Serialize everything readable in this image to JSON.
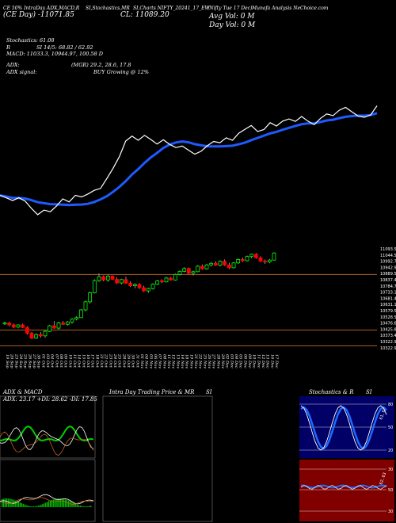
{
  "header": {
    "line1_a": "CE 50% IntraDay ADX,MACD,R",
    "line1_b": "SI,Stochastics,MR",
    "line1_c": "SI,Charts NIFTY_20241_17_EW",
    "line1_d": "(Nifty Tue 17 Dec)",
    "line1_e": "Munafa Analysis NeChoice.com",
    "price_left": "(CE Day) -11071.85",
    "price_mid": "CL: 11089.20",
    "vol_line1": "Avg Vol: 0  M",
    "vol_line2": "Day Vol: 0   M"
  },
  "indicators": {
    "stochastics": "Stochastics: 61.08",
    "rsi": "SI 14/5: 68.82 / 62.92",
    "rsi_prefix": "R",
    "macd": "MACD: 11033.3, 10944.97, 100.58 D",
    "adx": "(MGR) 29.2, 28.6, 17.8",
    "adx_label": "ADX:",
    "adx_signal_label": "ADX signal:",
    "adx_signal": "BUY Growing @ 12%"
  },
  "panels": {
    "adx_title": "ADX & MACD",
    "adx_values": "ADX: 23.17 +DI: 28.62 -DI: 17.85",
    "intraday_title": "Intra Day Trading Price & MR",
    "intraday_title_suffix": "SI",
    "stoch_title": "Stochastics & R",
    "stoch_title_suffix": "SI",
    "stoch_labels": [
      "80",
      "50",
      "20"
    ],
    "stoch_side_label": "61, 62",
    "rsi_labels": [
      "30",
      "50",
      "30"
    ],
    "rsi_side_label": "62, 63"
  },
  "chart_data": {
    "type": "candlestick",
    "dates": [
      "19 Sep",
      "20 Sep",
      "23 Sep",
      "24 Sep",
      "25 Sep",
      "26 Sep",
      "27 Sep",
      "30 Sep",
      "01 Oct",
      "03 Oct",
      "04 Oct",
      "07 Oct",
      "08 Oct",
      "09 Oct",
      "10 Oct",
      "11 Oct",
      "14 Oct",
      "15 Oct",
      "16 Oct",
      "17 Oct",
      "18 Oct",
      "21 Oct",
      "22 Oct",
      "23 Oct",
      "24 Oct",
      "25 Oct",
      "28 Oct",
      "29 Oct",
      "30 Oct",
      "31 Oct",
      "01 Nov",
      "04 Nov",
      "05 Nov",
      "06 Nov",
      "07 Nov",
      "08 Nov",
      "11 Nov",
      "12 Nov",
      "13 Nov",
      "14 Nov",
      "18 Nov",
      "19 Nov",
      "21 Nov",
      "22 Nov",
      "25 Nov",
      "26 Nov",
      "27 Nov",
      "28 Nov",
      "29 Nov",
      "02 Dec",
      "03 Dec",
      "04 Dec",
      "05 Dec",
      "06 Dec",
      "09 Dec",
      "10 Dec",
      "11 Dec",
      "12 Dec",
      "13 Dec",
      "16 Dec",
      "17 Dec"
    ],
    "price_axis_labels": [
      "11093.5",
      "11044.59",
      "10992.77",
      "10942.91",
      "10889.55",
      "10837.41",
      "10784.74",
      "10733.14",
      "10681.43",
      "10631.14",
      "10579.5",
      "10528.51",
      "10476.67",
      "10425.87",
      "10373.48",
      "10322.93",
      "10322.93"
    ],
    "candles": [
      {
        "o": 10505,
        "h": 10520,
        "l": 10495,
        "c": 10510,
        "up": true
      },
      {
        "o": 10510,
        "h": 10518,
        "l": 10485,
        "c": 10495,
        "up": false
      },
      {
        "o": 10495,
        "h": 10505,
        "l": 10470,
        "c": 10478,
        "up": false
      },
      {
        "o": 10478,
        "h": 10500,
        "l": 10468,
        "c": 10495,
        "up": true
      },
      {
        "o": 10495,
        "h": 10505,
        "l": 10470,
        "c": 10475,
        "up": false
      },
      {
        "o": 10475,
        "h": 10485,
        "l": 10420,
        "c": 10430,
        "up": false
      },
      {
        "o": 10430,
        "h": 10440,
        "l": 10385,
        "c": 10392,
        "up": false
      },
      {
        "o": 10392,
        "h": 10430,
        "l": 10385,
        "c": 10420,
        "up": true
      },
      {
        "o": 10420,
        "h": 10440,
        "l": 10395,
        "c": 10410,
        "up": false
      },
      {
        "o": 10410,
        "h": 10455,
        "l": 10395,
        "c": 10445,
        "up": true
      },
      {
        "o": 10445,
        "h": 10495,
        "l": 10440,
        "c": 10488,
        "up": true
      },
      {
        "o": 10488,
        "h": 10525,
        "l": 10465,
        "c": 10470,
        "up": false
      },
      {
        "o": 10470,
        "h": 10520,
        "l": 10460,
        "c": 10510,
        "up": true
      },
      {
        "o": 10510,
        "h": 10525,
        "l": 10495,
        "c": 10500,
        "up": false
      },
      {
        "o": 10500,
        "h": 10525,
        "l": 10490,
        "c": 10518,
        "up": true
      },
      {
        "o": 10518,
        "h": 10548,
        "l": 10505,
        "c": 10540,
        "up": true
      },
      {
        "o": 10540,
        "h": 10562,
        "l": 10530,
        "c": 10552,
        "up": true
      },
      {
        "o": 10552,
        "h": 10620,
        "l": 10548,
        "c": 10612,
        "up": true
      },
      {
        "o": 10612,
        "h": 10685,
        "l": 10600,
        "c": 10675,
        "up": true
      },
      {
        "o": 10675,
        "h": 10755,
        "l": 10660,
        "c": 10745,
        "up": true
      },
      {
        "o": 10745,
        "h": 10850,
        "l": 10740,
        "c": 10840,
        "up": true
      },
      {
        "o": 10840,
        "h": 10895,
        "l": 10830,
        "c": 10870,
        "up": true
      },
      {
        "o": 10870,
        "h": 10880,
        "l": 10835,
        "c": 10845,
        "up": false
      },
      {
        "o": 10845,
        "h": 10885,
        "l": 10830,
        "c": 10875,
        "up": true
      },
      {
        "o": 10875,
        "h": 10880,
        "l": 10845,
        "c": 10850,
        "up": false
      },
      {
        "o": 10850,
        "h": 10865,
        "l": 10815,
        "c": 10822,
        "up": false
      },
      {
        "o": 10822,
        "h": 10855,
        "l": 10810,
        "c": 10848,
        "up": true
      },
      {
        "o": 10848,
        "h": 10870,
        "l": 10815,
        "c": 10820,
        "up": false
      },
      {
        "o": 10820,
        "h": 10835,
        "l": 10790,
        "c": 10800,
        "up": false
      },
      {
        "o": 10800,
        "h": 10820,
        "l": 10780,
        "c": 10810,
        "up": true
      },
      {
        "o": 10810,
        "h": 10820,
        "l": 10775,
        "c": 10785,
        "up": false
      },
      {
        "o": 10785,
        "h": 10800,
        "l": 10752,
        "c": 10760,
        "up": false
      },
      {
        "o": 10760,
        "h": 10785,
        "l": 10745,
        "c": 10778,
        "up": true
      },
      {
        "o": 10778,
        "h": 10820,
        "l": 10770,
        "c": 10812,
        "up": true
      },
      {
        "o": 10812,
        "h": 10845,
        "l": 10805,
        "c": 10838,
        "up": true
      },
      {
        "o": 10838,
        "h": 10850,
        "l": 10820,
        "c": 10830,
        "up": false
      },
      {
        "o": 10830,
        "h": 10870,
        "l": 10825,
        "c": 10860,
        "up": true
      },
      {
        "o": 10860,
        "h": 10868,
        "l": 10840,
        "c": 10845,
        "up": false
      },
      {
        "o": 10845,
        "h": 10895,
        "l": 10840,
        "c": 10888,
        "up": true
      },
      {
        "o": 10888,
        "h": 10920,
        "l": 10880,
        "c": 10912,
        "up": true
      },
      {
        "o": 10912,
        "h": 10945,
        "l": 10905,
        "c": 10935,
        "up": true
      },
      {
        "o": 10935,
        "h": 10942,
        "l": 10890,
        "c": 10898,
        "up": false
      },
      {
        "o": 10898,
        "h": 10918,
        "l": 10880,
        "c": 10910,
        "up": true
      },
      {
        "o": 10910,
        "h": 10960,
        "l": 10905,
        "c": 10952,
        "up": true
      },
      {
        "o": 10952,
        "h": 10965,
        "l": 10925,
        "c": 10932,
        "up": false
      },
      {
        "o": 10932,
        "h": 10972,
        "l": 10925,
        "c": 10962,
        "up": true
      },
      {
        "o": 10962,
        "h": 10985,
        "l": 10950,
        "c": 10975,
        "up": true
      },
      {
        "o": 10975,
        "h": 10990,
        "l": 10955,
        "c": 10960,
        "up": false
      },
      {
        "o": 10960,
        "h": 10998,
        "l": 10950,
        "c": 10990,
        "up": true
      },
      {
        "o": 10990,
        "h": 11005,
        "l": 10955,
        "c": 10962,
        "up": false
      },
      {
        "o": 10962,
        "h": 10980,
        "l": 10930,
        "c": 10940,
        "up": false
      },
      {
        "o": 10940,
        "h": 10985,
        "l": 10935,
        "c": 10978,
        "up": true
      },
      {
        "o": 10978,
        "h": 11012,
        "l": 10970,
        "c": 11005,
        "up": true
      },
      {
        "o": 11005,
        "h": 11020,
        "l": 10985,
        "c": 10995,
        "up": false
      },
      {
        "o": 10995,
        "h": 11035,
        "l": 10990,
        "c": 11028,
        "up": true
      },
      {
        "o": 11028,
        "h": 11050,
        "l": 11015,
        "c": 11045,
        "up": true
      },
      {
        "o": 11045,
        "h": 11055,
        "l": 11010,
        "c": 11018,
        "up": false
      },
      {
        "o": 11018,
        "h": 11030,
        "l": 10985,
        "c": 10992,
        "up": false
      },
      {
        "o": 10992,
        "h": 11005,
        "l": 10970,
        "c": 10985,
        "up": false
      },
      {
        "o": 10985,
        "h": 11008,
        "l": 10975,
        "c": 11000,
        "up": true
      },
      {
        "o": 11000,
        "h": 11060,
        "l": 10995,
        "c": 11055,
        "up": true
      }
    ],
    "price_range": [
      10310,
      11100
    ],
    "colors": {
      "up": "#00ff00",
      "down": "#ff0000",
      "ma": "#1e5bff",
      "price_line": "#ffffff",
      "level": "#b06020"
    }
  },
  "colors": {
    "background": "#000000",
    "stoch_bg": "#000066",
    "rsi_bg": "#800000"
  }
}
